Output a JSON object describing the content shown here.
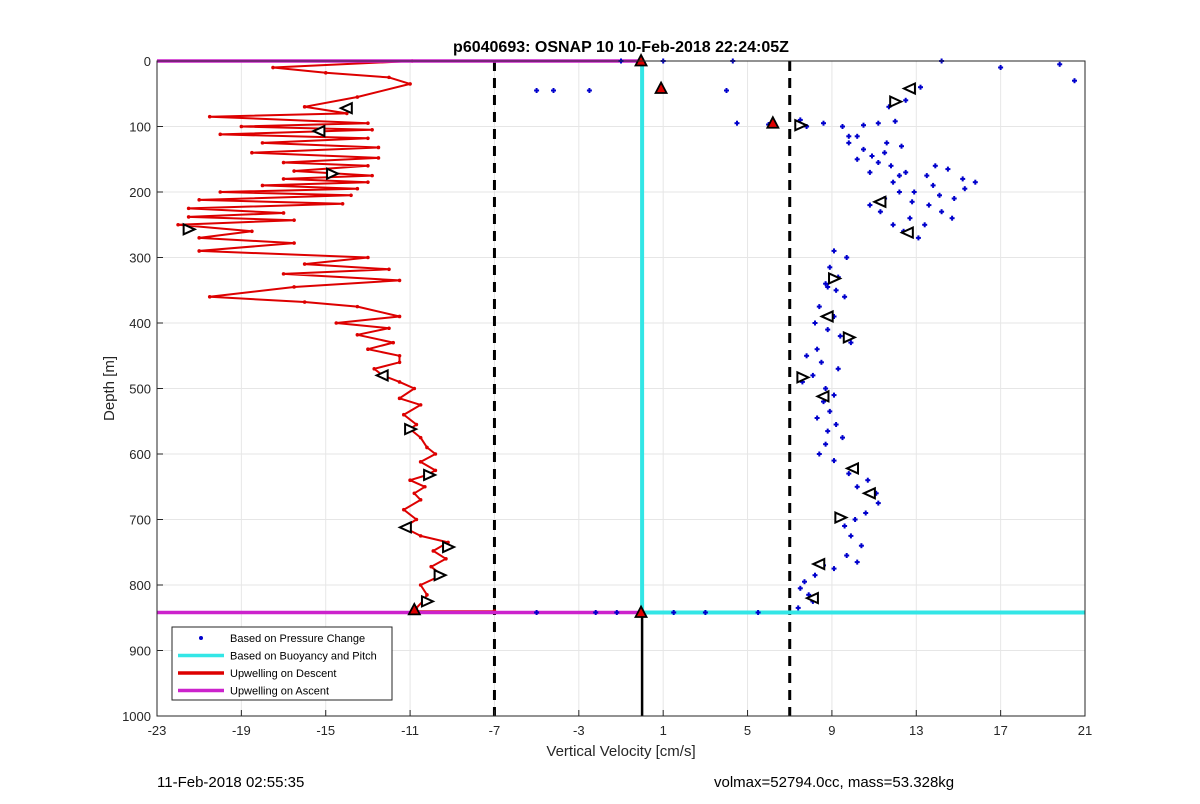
{
  "footer": {
    "timestamp": "11-Feb-2018 02:55:35",
    "volmax_mass": "volmax=52794.0cc, mass=53.328kg"
  },
  "chart_data": {
    "type": "scatter",
    "title": "p6040693: OSNAP 10 10-Feb-2018 22:24:05Z",
    "xlabel": "Vertical Velocity [cm/s]",
    "ylabel": "Depth [m]",
    "xlim": [
      -23,
      21
    ],
    "ylim": [
      0,
      1000
    ],
    "y_reversed": true,
    "grid": true,
    "xticks": [
      -23,
      -19,
      -15,
      -11,
      -7,
      -3,
      1,
      5,
      9,
      13,
      17,
      21
    ],
    "yticks": [
      0,
      100,
      200,
      300,
      400,
      500,
      600,
      700,
      800,
      900,
      1000
    ],
    "legend_placement": "bottom-left",
    "legend": [
      "Based on Pressure Change",
      "Based on Buoyancy and Pitch",
      "Upwelling on Descent",
      "Upwelling on Ascent"
    ],
    "colors": {
      "pressure": "#0000cc",
      "buoyancy": "#33e6e6",
      "descent": "#dd0000",
      "ascent": "#cc22cc",
      "threshold": "#000000"
    },
    "threshold_lines_x": [
      -7,
      7
    ],
    "bottom_depth_m": 842,
    "series": [
      {
        "name": "Upwelling on Descent",
        "style": "line",
        "points": [
          [
            -10.9,
            0
          ],
          [
            -17.5,
            10
          ],
          [
            -15,
            18
          ],
          [
            -12,
            25
          ],
          [
            -11,
            35
          ],
          [
            -13.5,
            55
          ],
          [
            -16,
            70
          ],
          [
            -14,
            80
          ],
          [
            -20.5,
            85
          ],
          [
            -13,
            95
          ],
          [
            -19,
            100
          ],
          [
            -12.8,
            105
          ],
          [
            -20,
            112
          ],
          [
            -13,
            118
          ],
          [
            -18,
            125
          ],
          [
            -12.5,
            132
          ],
          [
            -18.5,
            140
          ],
          [
            -12.5,
            148
          ],
          [
            -17,
            155
          ],
          [
            -13,
            160
          ],
          [
            -16.5,
            168
          ],
          [
            -12.8,
            175
          ],
          [
            -17,
            180
          ],
          [
            -13,
            185
          ],
          [
            -18,
            190
          ],
          [
            -13.5,
            195
          ],
          [
            -20,
            200
          ],
          [
            -13.8,
            205
          ],
          [
            -21,
            212
          ],
          [
            -14.2,
            218
          ],
          [
            -21.5,
            225
          ],
          [
            -17,
            232
          ],
          [
            -21.5,
            238
          ],
          [
            -16.5,
            243
          ],
          [
            -22,
            250
          ],
          [
            -18.5,
            260
          ],
          [
            -21,
            270
          ],
          [
            -16.5,
            278
          ],
          [
            -21,
            290
          ],
          [
            -13,
            300
          ],
          [
            -16,
            310
          ],
          [
            -12,
            318
          ],
          [
            -17,
            325
          ],
          [
            -11.5,
            335
          ],
          [
            -16.5,
            345
          ],
          [
            -20.5,
            360
          ],
          [
            -16,
            368
          ],
          [
            -13.5,
            375
          ],
          [
            -11.5,
            390
          ],
          [
            -14.5,
            400
          ],
          [
            -12,
            408
          ],
          [
            -13.5,
            418
          ],
          [
            -11.8,
            430
          ],
          [
            -13,
            440
          ],
          [
            -11.5,
            450
          ],
          [
            -11.5,
            460
          ],
          [
            -12.7,
            470
          ],
          [
            -12.3,
            480
          ],
          [
            -11.5,
            490
          ],
          [
            -10.8,
            500
          ],
          [
            -11.5,
            515
          ],
          [
            -10.5,
            525
          ],
          [
            -11.3,
            540
          ],
          [
            -10.7,
            555
          ],
          [
            -11,
            562
          ],
          [
            -10.5,
            575
          ],
          [
            -10.2,
            590
          ],
          [
            -9.8,
            600
          ],
          [
            -10.5,
            612
          ],
          [
            -9.8,
            625
          ],
          [
            -10.2,
            632
          ],
          [
            -11,
            640
          ],
          [
            -10.3,
            650
          ],
          [
            -10.8,
            660
          ],
          [
            -10.5,
            670
          ],
          [
            -11.3,
            685
          ],
          [
            -10.7,
            700
          ],
          [
            -11.3,
            712
          ],
          [
            -10.5,
            725
          ],
          [
            -9.2,
            735
          ],
          [
            -9.9,
            748
          ],
          [
            -9.3,
            760
          ],
          [
            -10,
            772
          ],
          [
            -9.5,
            785
          ],
          [
            -10.5,
            800
          ],
          [
            -10.2,
            815
          ],
          [
            -10.4,
            825
          ],
          [
            -10.7,
            835
          ],
          [
            -10.9,
            840
          ],
          [
            -7,
            840
          ]
        ]
      },
      {
        "name": "Upwelling on Ascent",
        "style": "line",
        "points": [
          [
            0,
            0
          ],
          [
            -23,
            0
          ]
        ]
      },
      {
        "name": "Upwelling on Ascent",
        "style": "line",
        "points": [
          [
            0,
            842
          ],
          [
            -23,
            842
          ]
        ]
      },
      {
        "name": "Based on Buoyancy and Pitch",
        "style": "line",
        "points": [
          [
            0,
            0
          ],
          [
            0,
            842
          ],
          [
            21,
            842
          ]
        ]
      },
      {
        "name": "Based on Pressure Change",
        "style": "dots",
        "points": [
          [
            0.8,
            45
          ],
          [
            -5,
            45
          ],
          [
            -4.2,
            45
          ],
          [
            -2.5,
            45
          ],
          [
            4,
            45
          ],
          [
            -1,
            0
          ],
          [
            4.3,
            0
          ],
          [
            14.2,
            0
          ],
          [
            19.8,
            5
          ],
          [
            20.5,
            30
          ],
          [
            17,
            10
          ],
          [
            1,
            0
          ],
          [
            6,
            97
          ],
          [
            4.5,
            95
          ],
          [
            7.5,
            90
          ],
          [
            -5,
            842
          ],
          [
            -2.2,
            842
          ],
          [
            1.5,
            842
          ],
          [
            3,
            842
          ],
          [
            5.5,
            842
          ],
          [
            -1.2,
            842
          ],
          [
            7.8,
            100
          ],
          [
            8.6,
            95
          ],
          [
            9.5,
            100
          ],
          [
            10.5,
            98
          ],
          [
            11.2,
            95
          ],
          [
            12,
            92
          ],
          [
            12.5,
            60
          ],
          [
            13.2,
            40
          ],
          [
            11.7,
            70
          ],
          [
            9.8,
            125
          ],
          [
            10.5,
            135
          ],
          [
            11.5,
            140
          ],
          [
            12.3,
            130
          ],
          [
            10.2,
            150
          ],
          [
            11.8,
            160
          ],
          [
            12.5,
            170
          ],
          [
            13.5,
            175
          ],
          [
            14.5,
            165
          ],
          [
            15.2,
            180
          ],
          [
            13.8,
            190
          ],
          [
            12.2,
            200
          ],
          [
            11.5,
            210
          ],
          [
            12.8,
            215
          ],
          [
            13.6,
            220
          ],
          [
            14.2,
            230
          ],
          [
            12.7,
            240
          ],
          [
            11.9,
            250
          ],
          [
            12.4,
            260
          ],
          [
            13.1,
            270
          ],
          [
            11.3,
            230
          ],
          [
            10.8,
            220
          ],
          [
            14.8,
            210
          ],
          [
            15.8,
            185
          ],
          [
            13.9,
            160
          ],
          [
            12.2,
            175
          ],
          [
            10.8,
            170
          ],
          [
            9.8,
            115
          ],
          [
            11.6,
            125
          ],
          [
            12.9,
            200
          ],
          [
            9.1,
            290
          ],
          [
            9.7,
            300
          ],
          [
            8.9,
            315
          ],
          [
            9.3,
            330
          ],
          [
            8.8,
            345
          ],
          [
            9.6,
            360
          ],
          [
            8.4,
            375
          ],
          [
            9.1,
            390
          ],
          [
            8.2,
            400
          ],
          [
            8.8,
            410
          ],
          [
            9.4,
            420
          ],
          [
            9.9,
            430
          ],
          [
            8.3,
            440
          ],
          [
            7.8,
            450
          ],
          [
            8.5,
            460
          ],
          [
            9.3,
            470
          ],
          [
            8.1,
            480
          ],
          [
            7.6,
            490
          ],
          [
            8.7,
            500
          ],
          [
            9.1,
            510
          ],
          [
            8.6,
            520
          ],
          [
            8.9,
            535
          ],
          [
            8.3,
            545
          ],
          [
            9.2,
            555
          ],
          [
            8.8,
            565
          ],
          [
            9.5,
            575
          ],
          [
            8.7,
            585
          ],
          [
            8.4,
            600
          ],
          [
            9.1,
            610
          ],
          [
            10.1,
            620
          ],
          [
            9.8,
            630
          ],
          [
            10.7,
            640
          ],
          [
            10.2,
            650
          ],
          [
            11.1,
            660
          ],
          [
            11.2,
            675
          ],
          [
            10.6,
            690
          ],
          [
            10.1,
            700
          ],
          [
            9.6,
            710
          ],
          [
            9.9,
            725
          ],
          [
            10.4,
            740
          ],
          [
            9.7,
            755
          ],
          [
            10.2,
            765
          ],
          [
            9.1,
            775
          ],
          [
            8.2,
            785
          ],
          [
            7.7,
            795
          ],
          [
            7.5,
            805
          ],
          [
            7.9,
            815
          ],
          [
            8.1,
            825
          ],
          [
            7.4,
            835
          ],
          [
            8.6,
            770
          ],
          [
            9.2,
            350
          ],
          [
            8.7,
            340
          ],
          [
            10.2,
            115
          ],
          [
            14.7,
            240
          ],
          [
            13.4,
            250
          ],
          [
            15.3,
            195
          ],
          [
            14.1,
            205
          ],
          [
            11.9,
            185
          ],
          [
            10.9,
            145
          ],
          [
            11.2,
            155
          ]
        ]
      }
    ],
    "markers": {
      "open_triangles": [
        [
          12.7,
          42
        ],
        [
          12,
          62
        ],
        [
          -14,
          72
        ],
        [
          7.5,
          98
        ],
        [
          -15.3,
          107
        ],
        [
          -14.7,
          172
        ],
        [
          11.3,
          215
        ],
        [
          -21.5,
          257
        ],
        [
          12.6,
          262
        ],
        [
          9.1,
          332
        ],
        [
          8.8,
          390
        ],
        [
          9.8,
          422
        ],
        [
          -12.3,
          480
        ],
        [
          7.6,
          483
        ],
        [
          8.6,
          512
        ],
        [
          -11,
          562
        ],
        [
          10,
          622
        ],
        [
          -10.1,
          632
        ],
        [
          10.8,
          660
        ],
        [
          9.4,
          697
        ],
        [
          -11.2,
          712
        ],
        [
          -9.2,
          742
        ],
        [
          8.4,
          768
        ],
        [
          -9.6,
          785
        ],
        [
          8.1,
          820
        ],
        [
          -10.2,
          825
        ]
      ],
      "red_triangles": [
        [
          0.9,
          42
        ],
        [
          6.2,
          95
        ],
        [
          -10.8,
          838
        ],
        [
          -0.05,
          842
        ],
        [
          -0.05,
          0
        ]
      ]
    }
  }
}
